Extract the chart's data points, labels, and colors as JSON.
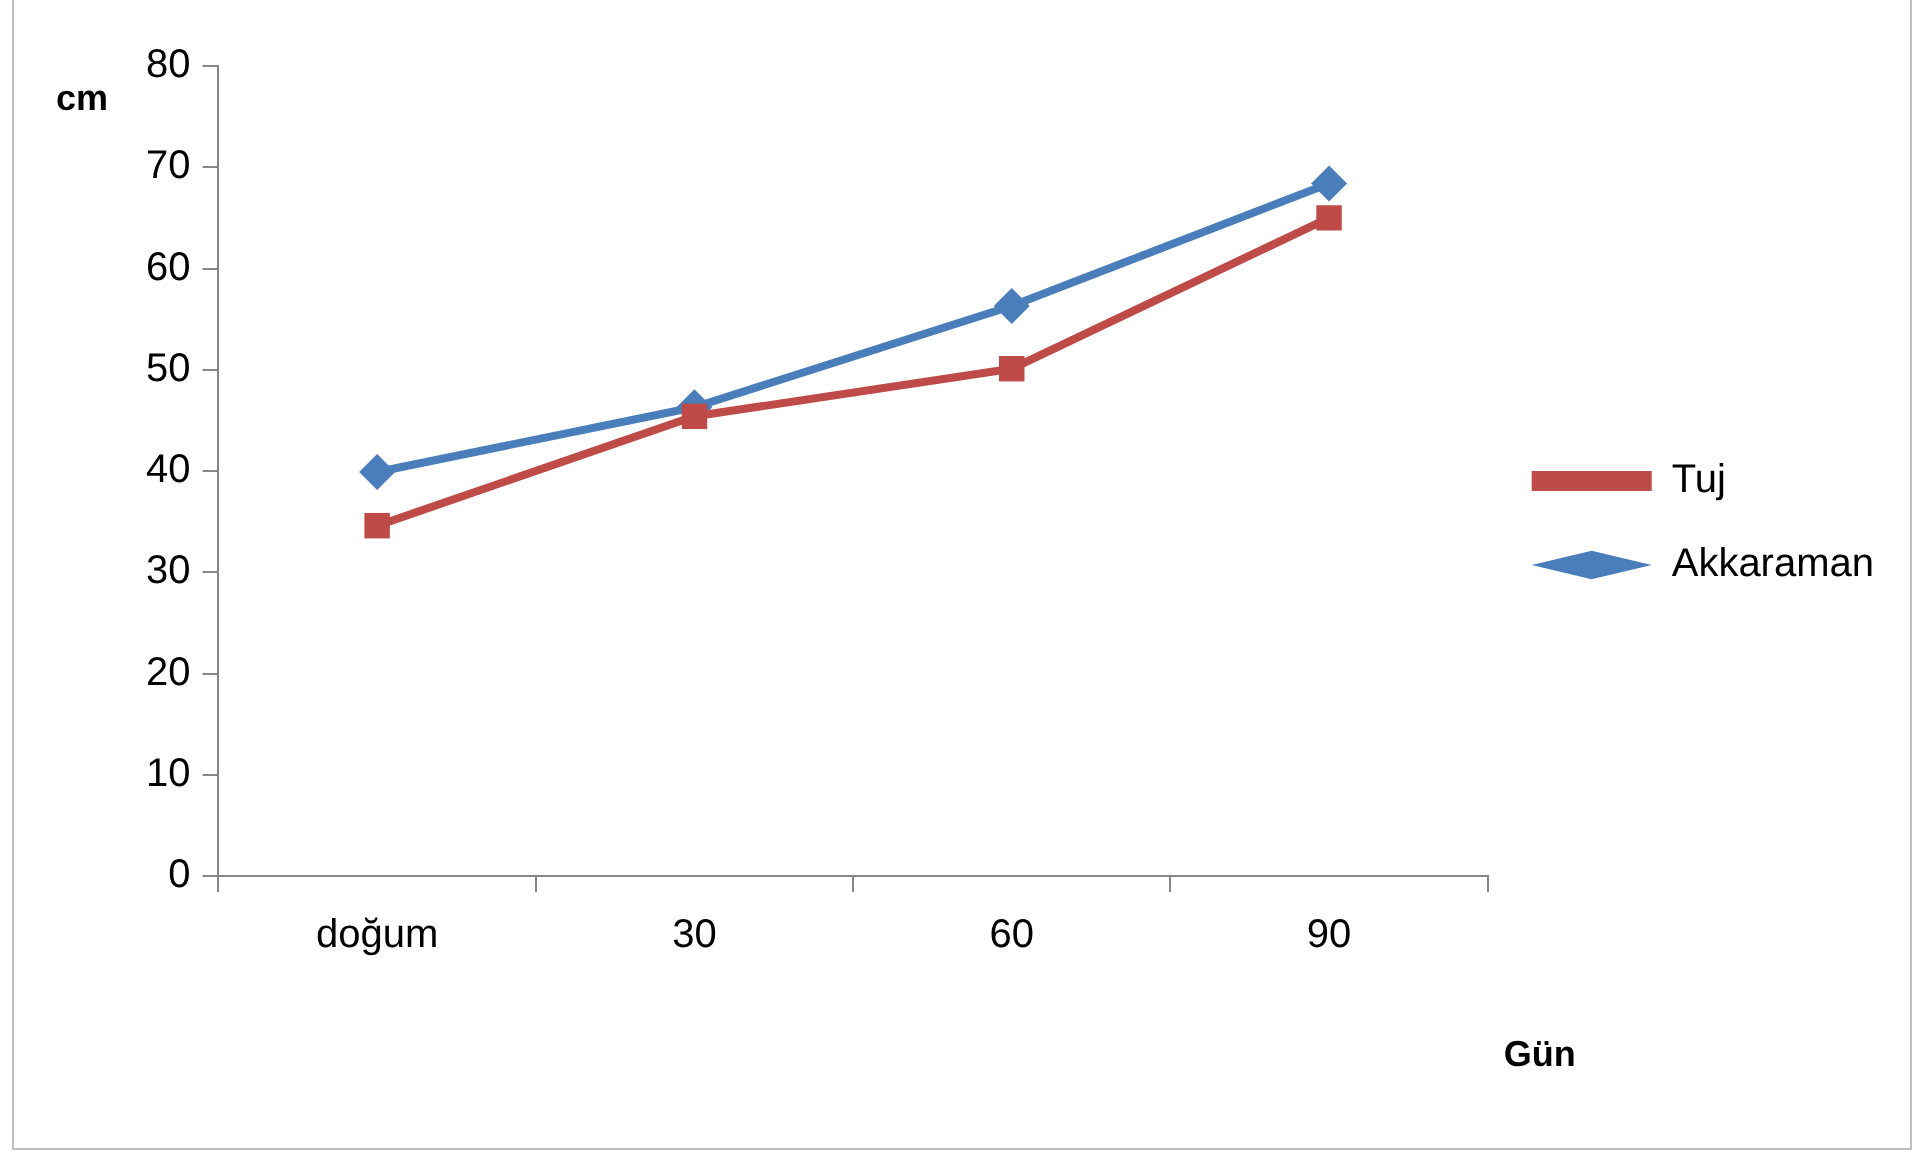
{
  "chart_data": {
    "type": "line",
    "xlabel": "Gün",
    "ylabel": "cm",
    "categories": [
      "doğum",
      "30",
      "60",
      "90"
    ],
    "series": [
      {
        "name": "Akkaraman",
        "color": "#4a7ebb",
        "marker": "diamond",
        "values": [
          39.9,
          46.3,
          56.3,
          68.4
        ]
      },
      {
        "name": "Tuj",
        "color": "#be4b48",
        "marker": "square",
        "values": [
          34.6,
          45.4,
          50.1,
          65.0
        ]
      }
    ],
    "ylim": [
      0,
      80
    ],
    "yticks": [
      0,
      10,
      20,
      30,
      40,
      50,
      60,
      70,
      80
    ],
    "grid": false,
    "legend": "right",
    "line_style": "solid"
  }
}
